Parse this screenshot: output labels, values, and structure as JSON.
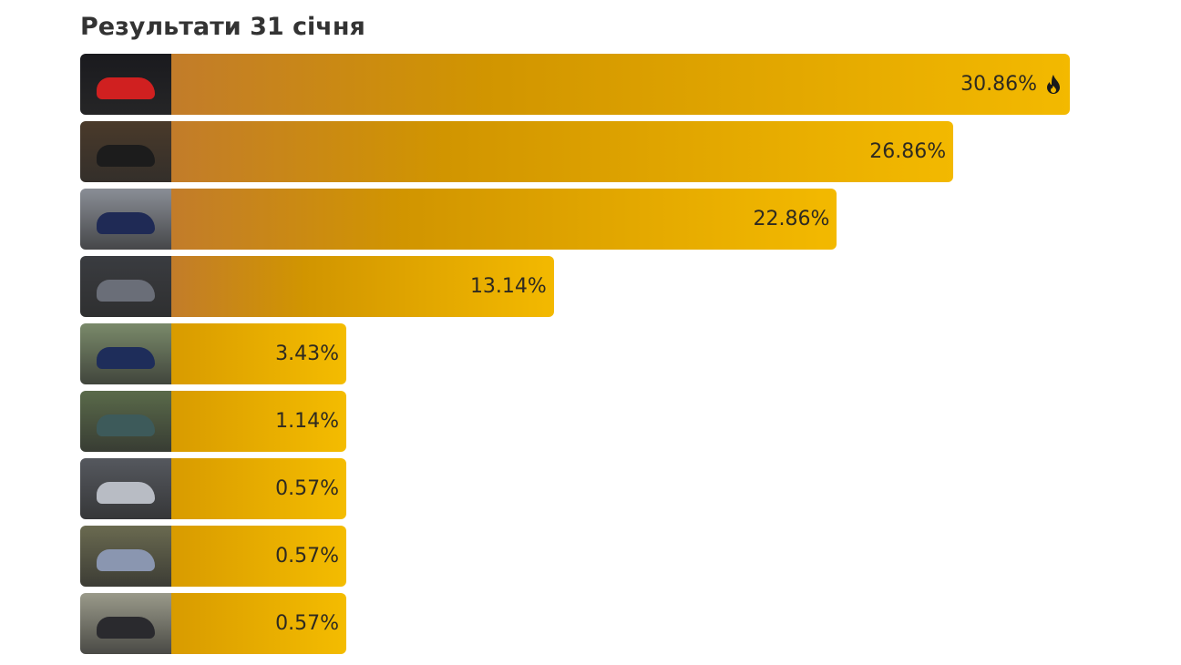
{
  "title": "Результати 31 січня",
  "accent_colors": {
    "bar_start": "#c27c2a",
    "bar_mid": "#d19500",
    "bar_end": "#f3b900"
  },
  "results": [
    {
      "percent": 30.86,
      "label": "30.86%",
      "leader": true,
      "icon": "fire-icon",
      "thumb_bg": "#1a1a1e",
      "car_color": "#d02020"
    },
    {
      "percent": 26.86,
      "label": "26.86%",
      "leader": false,
      "thumb_bg": "#4a3a2a",
      "car_color": "#1c1c1c"
    },
    {
      "percent": 22.86,
      "label": "22.86%",
      "leader": false,
      "thumb_bg": "#8a8e96",
      "car_color": "#1f2a55"
    },
    {
      "percent": 13.14,
      "label": "13.14%",
      "leader": false,
      "thumb_bg": "#3a3c40",
      "car_color": "#6a6e78"
    },
    {
      "percent": 3.43,
      "label": "3.43%",
      "leader": false,
      "thumb_bg": "#7a8a6a",
      "car_color": "#1e2d5a"
    },
    {
      "percent": 1.14,
      "label": "1.14%",
      "leader": false,
      "thumb_bg": "#5a6a4a",
      "car_color": "#3d5a5a"
    },
    {
      "percent": 0.57,
      "label": "0.57%",
      "leader": false,
      "thumb_bg": "#55585e",
      "car_color": "#b8bcc4"
    },
    {
      "percent": 0.57,
      "label": "0.57%",
      "leader": false,
      "thumb_bg": "#6a6a50",
      "car_color": "#8a96b0"
    },
    {
      "percent": 0.57,
      "label": "0.57%",
      "leader": false,
      "thumb_bg": "#9a9a8a",
      "car_color": "#2a2a2e"
    }
  ]
}
